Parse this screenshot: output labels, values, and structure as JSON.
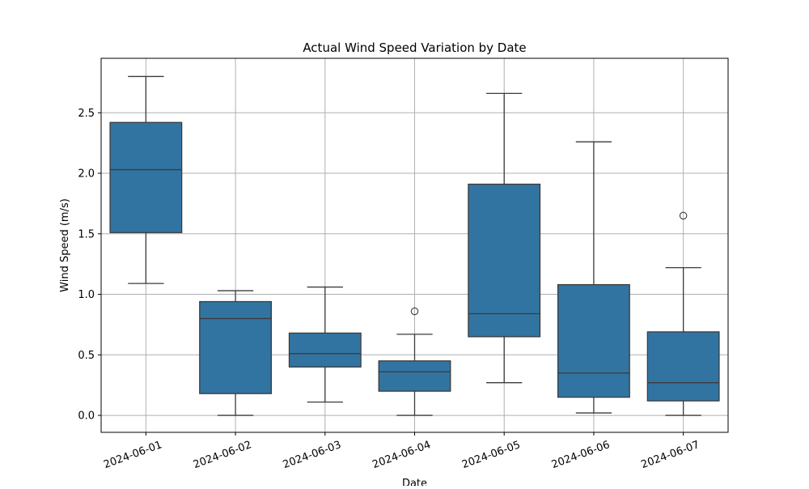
{
  "chart_data": {
    "type": "boxplot",
    "title": "Actual Wind Speed Variation by Date",
    "xlabel": "Date",
    "ylabel": "Wind Speed (m/s)",
    "ylim": [
      -0.14,
      2.95
    ],
    "yticks": [
      0.0,
      0.5,
      1.0,
      1.5,
      2.0,
      2.5
    ],
    "ytick_labels": [
      "0.0",
      "0.5",
      "1.0",
      "1.5",
      "2.0",
      "2.5"
    ],
    "grid": true,
    "box_color": "#3274a1",
    "categories": [
      "2024-06-01",
      "2024-06-02",
      "2024-06-03",
      "2024-06-04",
      "2024-06-05",
      "2024-06-06",
      "2024-06-07"
    ],
    "boxes": [
      {
        "category": "2024-06-01",
        "whisker_low": 1.09,
        "q1": 1.51,
        "median": 2.03,
        "q3": 2.42,
        "whisker_high": 2.8,
        "outliers": []
      },
      {
        "category": "2024-06-02",
        "whisker_low": 0.0,
        "q1": 0.18,
        "median": 0.8,
        "q3": 0.94,
        "whisker_high": 1.03,
        "outliers": []
      },
      {
        "category": "2024-06-03",
        "whisker_low": 0.11,
        "q1": 0.4,
        "median": 0.51,
        "q3": 0.68,
        "whisker_high": 1.06,
        "outliers": []
      },
      {
        "category": "2024-06-04",
        "whisker_low": 0.0,
        "q1": 0.2,
        "median": 0.36,
        "q3": 0.45,
        "whisker_high": 0.67,
        "outliers": [
          0.86
        ]
      },
      {
        "category": "2024-06-05",
        "whisker_low": 0.27,
        "q1": 0.65,
        "median": 0.84,
        "q3": 1.91,
        "whisker_high": 2.66,
        "outliers": []
      },
      {
        "category": "2024-06-06",
        "whisker_low": 0.02,
        "q1": 0.15,
        "median": 0.35,
        "q3": 1.08,
        "whisker_high": 2.26,
        "outliers": []
      },
      {
        "category": "2024-06-07",
        "whisker_low": 0.0,
        "q1": 0.12,
        "median": 0.27,
        "q3": 0.69,
        "whisker_high": 1.22,
        "outliers": [
          1.65
        ]
      }
    ]
  }
}
